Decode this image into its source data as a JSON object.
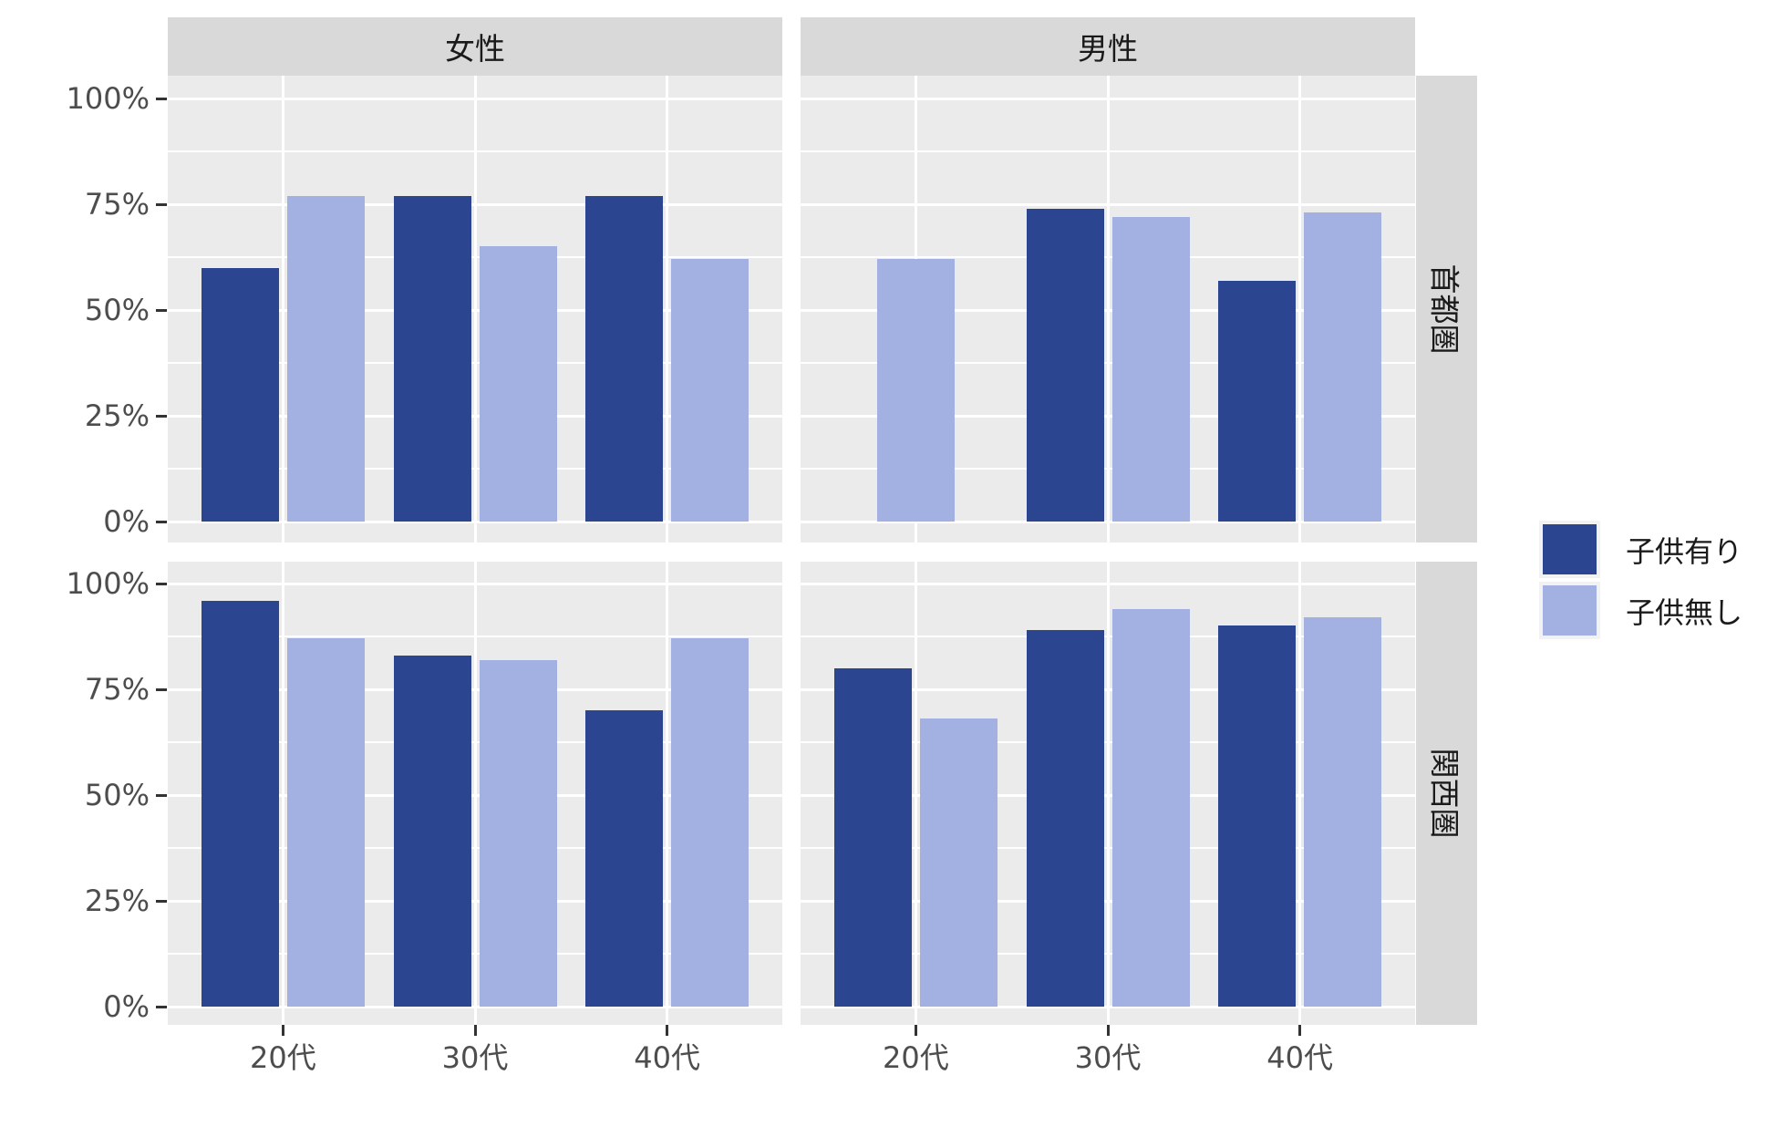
{
  "chart_data": {
    "type": "bar",
    "title": "",
    "facet_cols": [
      "女性",
      "男性"
    ],
    "facet_rows": [
      "首都圏",
      "関西圏"
    ],
    "categories": [
      "20代",
      "30代",
      "40代"
    ],
    "series_names": [
      "子供有り",
      "子供無し"
    ],
    "y_tick_labels": [
      "100%",
      "75%",
      "50%",
      "25%",
      "0%"
    ],
    "y_tick_values": [
      100,
      75,
      50,
      25,
      0
    ],
    "ylim": [
      0,
      100
    ],
    "grid": "white major and minor horizontal lines, white major vertical lines on gray panel",
    "legend_position": "right",
    "panels": [
      {
        "row": "首都圏",
        "col": "女性",
        "series": [
          {
            "name": "子供有り",
            "values": [
              60,
              77,
              77
            ]
          },
          {
            "name": "子供無し",
            "values": [
              77,
              65,
              62
            ]
          }
        ]
      },
      {
        "row": "首都圏",
        "col": "男性",
        "series": [
          {
            "name": "子供有り",
            "values": [
              null,
              74,
              57
            ]
          },
          {
            "name": "子供無し",
            "values": [
              62,
              72,
              73
            ]
          }
        ]
      },
      {
        "row": "関西圏",
        "col": "女性",
        "series": [
          {
            "name": "子供有り",
            "values": [
              96,
              83,
              70
            ]
          },
          {
            "name": "子供無し",
            "values": [
              87,
              82,
              87
            ]
          }
        ]
      },
      {
        "row": "関西圏",
        "col": "男性",
        "series": [
          {
            "name": "子供有り",
            "values": [
              80,
              89,
              90
            ]
          },
          {
            "name": "子供無し",
            "values": [
              68,
              94,
              92
            ]
          }
        ]
      }
    ],
    "colors": {
      "子供有り": "#2B4591",
      "子供無し": "#A3B1E2"
    }
  },
  "legend": {
    "items": [
      {
        "label": "子供有り",
        "color": "#2B4591"
      },
      {
        "label": "子供無し",
        "color": "#A3B1E2"
      }
    ]
  },
  "theme": {
    "panel_bg": "#EBEBEB",
    "strip_bg": "#D9D9D9",
    "grid_color": "#FFFFFF",
    "axis_text_color": "#4D4D4D",
    "strip_text_color": "#1A1A1A",
    "tick_color": "#333333",
    "background": "#FFFFFF"
  }
}
